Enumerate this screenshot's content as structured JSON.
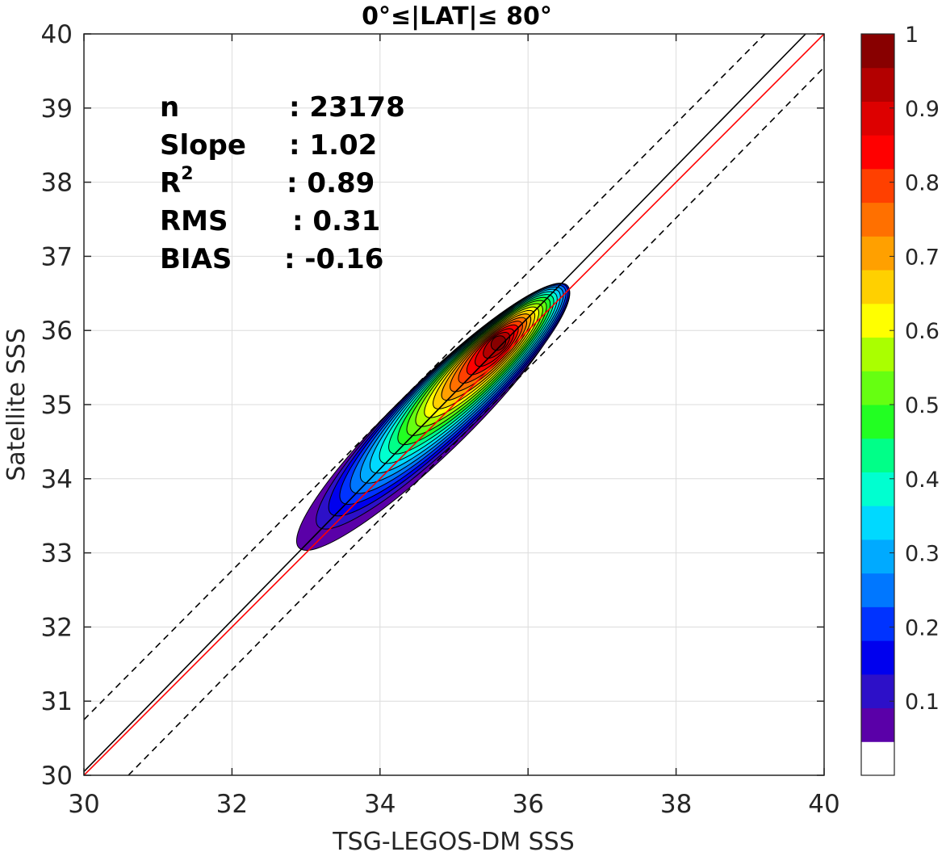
{
  "chart_data": {
    "type": "contour-density",
    "title": "0°≤|LAT|≤ 80°",
    "xlabel": "TSG-LEGOS-DM SSS",
    "ylabel": "Satellite SSS",
    "xlim": [
      30,
      40
    ],
    "ylim": [
      30,
      40
    ],
    "xticks": [
      30,
      32,
      34,
      36,
      38,
      40
    ],
    "yticks": [
      30,
      31,
      32,
      33,
      34,
      35,
      36,
      37,
      38,
      39,
      40
    ],
    "grid": true,
    "stats": [
      {
        "label": "n",
        "value": ": 23178"
      },
      {
        "label": "Slope",
        "value": ": 1.02"
      },
      {
        "label": "R",
        "sup": "2",
        "value": ": 0.89"
      },
      {
        "label": "RMS",
        "value": ": 0.31"
      },
      {
        "label": "BIAS",
        "value": ": -0.16"
      }
    ],
    "reference_lines": [
      {
        "name": "regression",
        "color": "#000000",
        "style": "solid",
        "points": [
          [
            30,
            30.05
          ],
          [
            39.75,
            40
          ]
        ]
      },
      {
        "name": "one-to-one",
        "color": "#ff0000",
        "style": "solid",
        "points": [
          [
            30,
            30
          ],
          [
            40,
            40
          ]
        ]
      },
      {
        "name": "upper-envelope",
        "color": "#000000",
        "style": "dashed",
        "points": [
          [
            30,
            30.75
          ],
          [
            39.2,
            40
          ]
        ]
      },
      {
        "name": "lower-envelope",
        "color": "#000000",
        "style": "dashed",
        "points": [
          [
            30.6,
            30
          ],
          [
            40,
            39.55
          ]
        ]
      }
    ],
    "density_peak": {
      "x": 35.6,
      "y": 35.83,
      "value": 1.0
    },
    "density_along": {
      "x0": 34.0,
      "y0": 34.0,
      "x1": 36.6,
      "y1": 36.5
    },
    "colorbar": {
      "range": [
        0,
        1
      ],
      "ticks": [
        "0.1",
        "0.2",
        "0.3",
        "0.4",
        "0.5",
        "0.6",
        "0.7",
        "0.8",
        "0.9",
        "1"
      ],
      "tick_values": [
        0.1,
        0.2,
        0.3,
        0.4,
        0.5,
        0.6,
        0.7,
        0.8,
        0.9,
        1.0
      ],
      "colors": [
        "#ffffff",
        "#5a00a8",
        "#2d10c8",
        "#0000ee",
        "#0033ff",
        "#0077ff",
        "#00aaff",
        "#00d9ff",
        "#00ffd0",
        "#00ff88",
        "#22ff22",
        "#66ff11",
        "#aaff00",
        "#ffff00",
        "#ffd000",
        "#ffa000",
        "#ff7000",
        "#ff4000",
        "#ff0000",
        "#dd0000",
        "#b30000",
        "#880000"
      ]
    }
  }
}
